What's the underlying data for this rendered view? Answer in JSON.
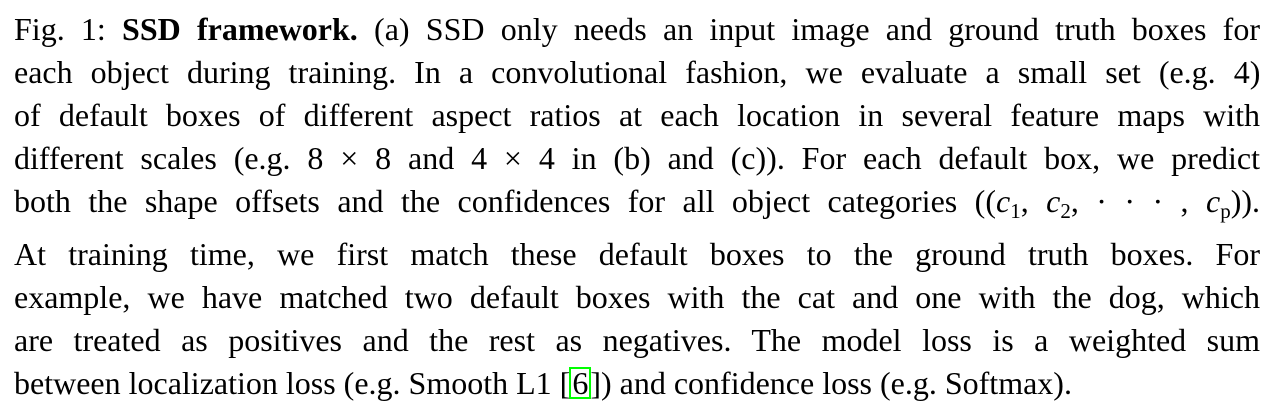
{
  "caption": {
    "fig_label": "Fig. 1:",
    "title": "SSD framework.",
    "line1_rest": " (a) SSD only needs an input image and ground truth boxes for",
    "line2": "each object during training. In a convolutional fashion, we evaluate a small set (e.g. 4)",
    "line3": "of default boxes of different aspect ratios at each location in several feature maps with",
    "line4": "different scales (e.g. 8 × 8 and 4 × 4 in (b) and (c)). For each default box, we predict",
    "line5_pre": "both the shape offsets and the confidences for all object categories ((",
    "c1": "c",
    "c1_sub": "1",
    "sep1": ", ",
    "c2": "c",
    "c2_sub": "2",
    "sep2": ", · · · , ",
    "cp": "c",
    "cp_sub": "p",
    "line5_post": ")).",
    "line6": "At training time, we first match these default boxes to the ground truth boxes. For",
    "line7": "example, we have matched two default boxes with the cat and one with the dog, which",
    "line8": "are treated as positives and the rest as negatives. The model loss is a weighted sum",
    "line9_pre": "between localization loss (e.g. Smooth L1 [",
    "citation": "6",
    "line9_post": "]) and confidence loss (e.g. Softmax)."
  },
  "colors": {
    "text": "#000000",
    "citation_box": "#00ff00",
    "background": "#ffffff"
  }
}
